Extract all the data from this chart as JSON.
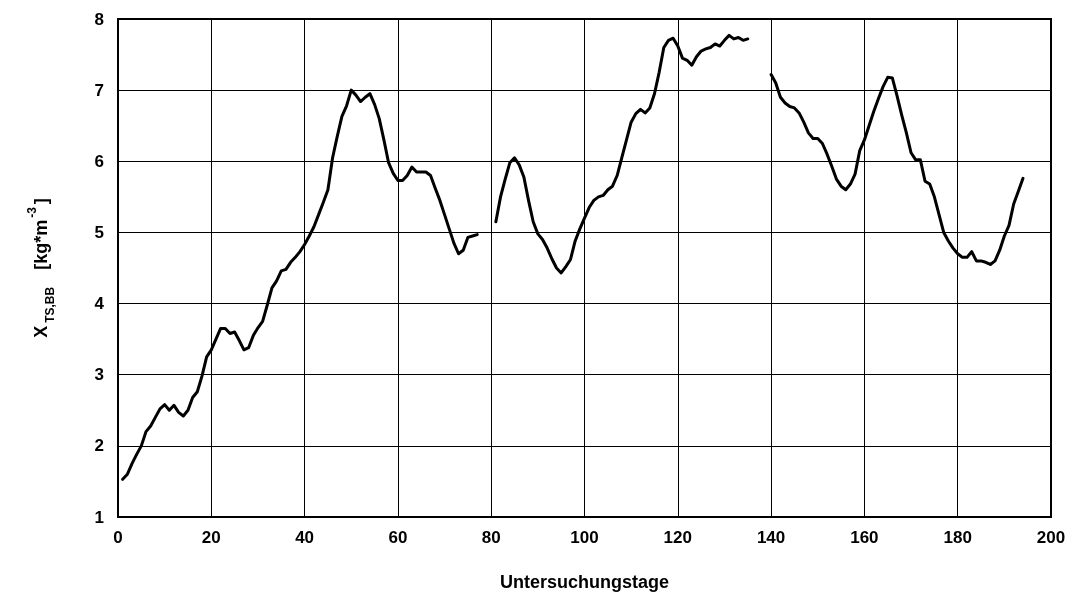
{
  "chart_data": {
    "type": "line",
    "xlabel": "Untersuchungstage",
    "ylabel": "X$_{TS,BB}$   [kg*m$^{-3}$]",
    "x": [
      1,
      2,
      3,
      4,
      5,
      6,
      7,
      8,
      9,
      10,
      11,
      12,
      13,
      14,
      15,
      16,
      17,
      18,
      19,
      20,
      21,
      22,
      23,
      24,
      25,
      26,
      27,
      28,
      29,
      30,
      31,
      32,
      33,
      34,
      35,
      36,
      37,
      38,
      39,
      40,
      41,
      42,
      43,
      44,
      45,
      46,
      47,
      48,
      49,
      50,
      51,
      52,
      53,
      54,
      55,
      56,
      57,
      58,
      59,
      60,
      61,
      62,
      63,
      64,
      65,
      66,
      67,
      68,
      69,
      70,
      71,
      72,
      73,
      74,
      75,
      76,
      77,
      79,
      81,
      82,
      83,
      84,
      85,
      86,
      87,
      88,
      89,
      90,
      91,
      92,
      93,
      94,
      95,
      96,
      97,
      98,
      99,
      100,
      101,
      102,
      103,
      104,
      105,
      106,
      107,
      108,
      109,
      110,
      111,
      112,
      113,
      114,
      115,
      116,
      117,
      118,
      119,
      120,
      121,
      122,
      123,
      124,
      125,
      126,
      127,
      128,
      129,
      130,
      131,
      132,
      133,
      134,
      135,
      138,
      140,
      141,
      142,
      143,
      144,
      145,
      146,
      147,
      148,
      149,
      150,
      151,
      152,
      153,
      154,
      155,
      156,
      157,
      158,
      159,
      160,
      161,
      162,
      163,
      164,
      165,
      166,
      167,
      168,
      169,
      170,
      171,
      172,
      173,
      174,
      175,
      176,
      177,
      178,
      179,
      180,
      181,
      182,
      183,
      184,
      185,
      186,
      187,
      188,
      189,
      190,
      191,
      192,
      193,
      194
    ],
    "series": [
      {
        "color": "#000000",
        "values": [
          1.53,
          1.6,
          1.75,
          1.88,
          2.0,
          2.2,
          2.28,
          2.4,
          2.52,
          2.58,
          2.5,
          2.57,
          2.47,
          2.42,
          2.5,
          2.68,
          2.76,
          2.98,
          3.25,
          3.35,
          3.5,
          3.65,
          3.65,
          3.58,
          3.6,
          3.48,
          3.35,
          3.38,
          3.55,
          3.66,
          3.75,
          3.98,
          4.22,
          4.32,
          4.46,
          4.48,
          4.58,
          4.65,
          4.73,
          4.83,
          4.95,
          5.08,
          5.25,
          5.42,
          5.6,
          6.05,
          6.35,
          6.63,
          6.78,
          7.0,
          6.93,
          6.84,
          6.9,
          6.95,
          6.8,
          6.6,
          6.3,
          5.98,
          5.83,
          5.73,
          5.73,
          5.8,
          5.92,
          5.85,
          5.85,
          5.85,
          5.8,
          5.62,
          5.45,
          5.25,
          5.05,
          4.85,
          4.7,
          4.75,
          4.93,
          4.95,
          4.97,
          null,
          5.15,
          5.5,
          5.75,
          5.98,
          6.05,
          5.95,
          5.78,
          5.45,
          5.15,
          4.98,
          4.9,
          4.78,
          4.63,
          4.5,
          4.43,
          4.52,
          4.62,
          4.88,
          5.05,
          5.2,
          5.35,
          5.45,
          5.5,
          5.52,
          5.6,
          5.65,
          5.8,
          6.05,
          6.3,
          6.55,
          6.67,
          6.73,
          6.68,
          6.75,
          6.95,
          7.25,
          7.6,
          7.7,
          7.73,
          7.62,
          7.45,
          7.42,
          7.35,
          7.47,
          7.55,
          7.58,
          7.6,
          7.65,
          7.62,
          7.7,
          7.77,
          7.72,
          7.74,
          7.7,
          7.72,
          null,
          7.22,
          7.1,
          6.9,
          6.82,
          6.77,
          6.75,
          6.68,
          6.55,
          6.4,
          6.32,
          6.32,
          6.25,
          6.1,
          5.93,
          5.75,
          5.65,
          5.6,
          5.68,
          5.82,
          6.15,
          6.3,
          6.5,
          6.7,
          6.88,
          7.05,
          7.18,
          7.17,
          6.92,
          6.65,
          6.4,
          6.12,
          6.02,
          6.02,
          5.72,
          5.68,
          5.5,
          5.25,
          5.0,
          4.88,
          4.78,
          4.7,
          4.65,
          4.65,
          4.73,
          4.6,
          4.6,
          4.58,
          4.55,
          4.6,
          4.75,
          4.95,
          5.1,
          5.4,
          5.58,
          5.76
        ]
      }
    ],
    "xlim": [
      0,
      200
    ],
    "xticks": [
      0,
      20,
      40,
      60,
      80,
      100,
      120,
      140,
      160,
      180,
      200
    ],
    "ylim": [
      1,
      8
    ],
    "yticks": [
      1,
      2,
      3,
      4,
      5,
      6,
      7,
      8
    ],
    "grid": true,
    "marker": "none",
    "line_style": "solid"
  }
}
